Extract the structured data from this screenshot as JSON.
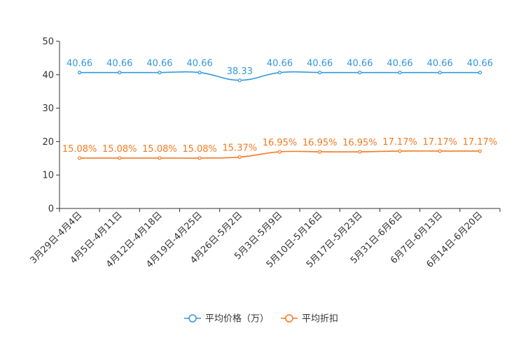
{
  "chart_data": {
    "type": "line",
    "categories": [
      "3月29日-4月4日",
      "4月5日-4月11日",
      "4月12日-4月18日",
      "4月19日-4月25日",
      "4月26日-5月2日",
      "5月3日-5月9日",
      "5月10日-5月16日",
      "5月17日-5月23日",
      "5月31日-6月6日",
      "6月7日-6月13日",
      "6月14日-6月20日"
    ],
    "ylim": [
      0,
      50
    ],
    "yticks": [
      0,
      10,
      20,
      30,
      40,
      50
    ],
    "series": [
      {
        "name": "平均价格（万）",
        "color": "#3398db",
        "values": [
          40.66,
          40.66,
          40.66,
          40.66,
          38.33,
          40.66,
          40.66,
          40.66,
          40.66,
          40.66,
          40.66
        ],
        "labels": [
          "40.66",
          "40.66",
          "40.66",
          "40.66",
          "38.33",
          "40.66",
          "40.66",
          "40.66",
          "40.66",
          "40.66",
          "40.66"
        ]
      },
      {
        "name": "平均折扣",
        "color": "#f47a1f",
        "values": [
          15.08,
          15.08,
          15.08,
          15.08,
          15.37,
          16.95,
          16.95,
          16.95,
          17.17,
          17.17,
          17.17
        ],
        "labels": [
          "15.08%",
          "15.08%",
          "15.08%",
          "15.08%",
          "15.37%",
          "16.95%",
          "16.95%",
          "16.95%",
          "17.17%",
          "17.17%",
          "17.17%"
        ]
      }
    ],
    "legend_position": "bottom-center"
  }
}
